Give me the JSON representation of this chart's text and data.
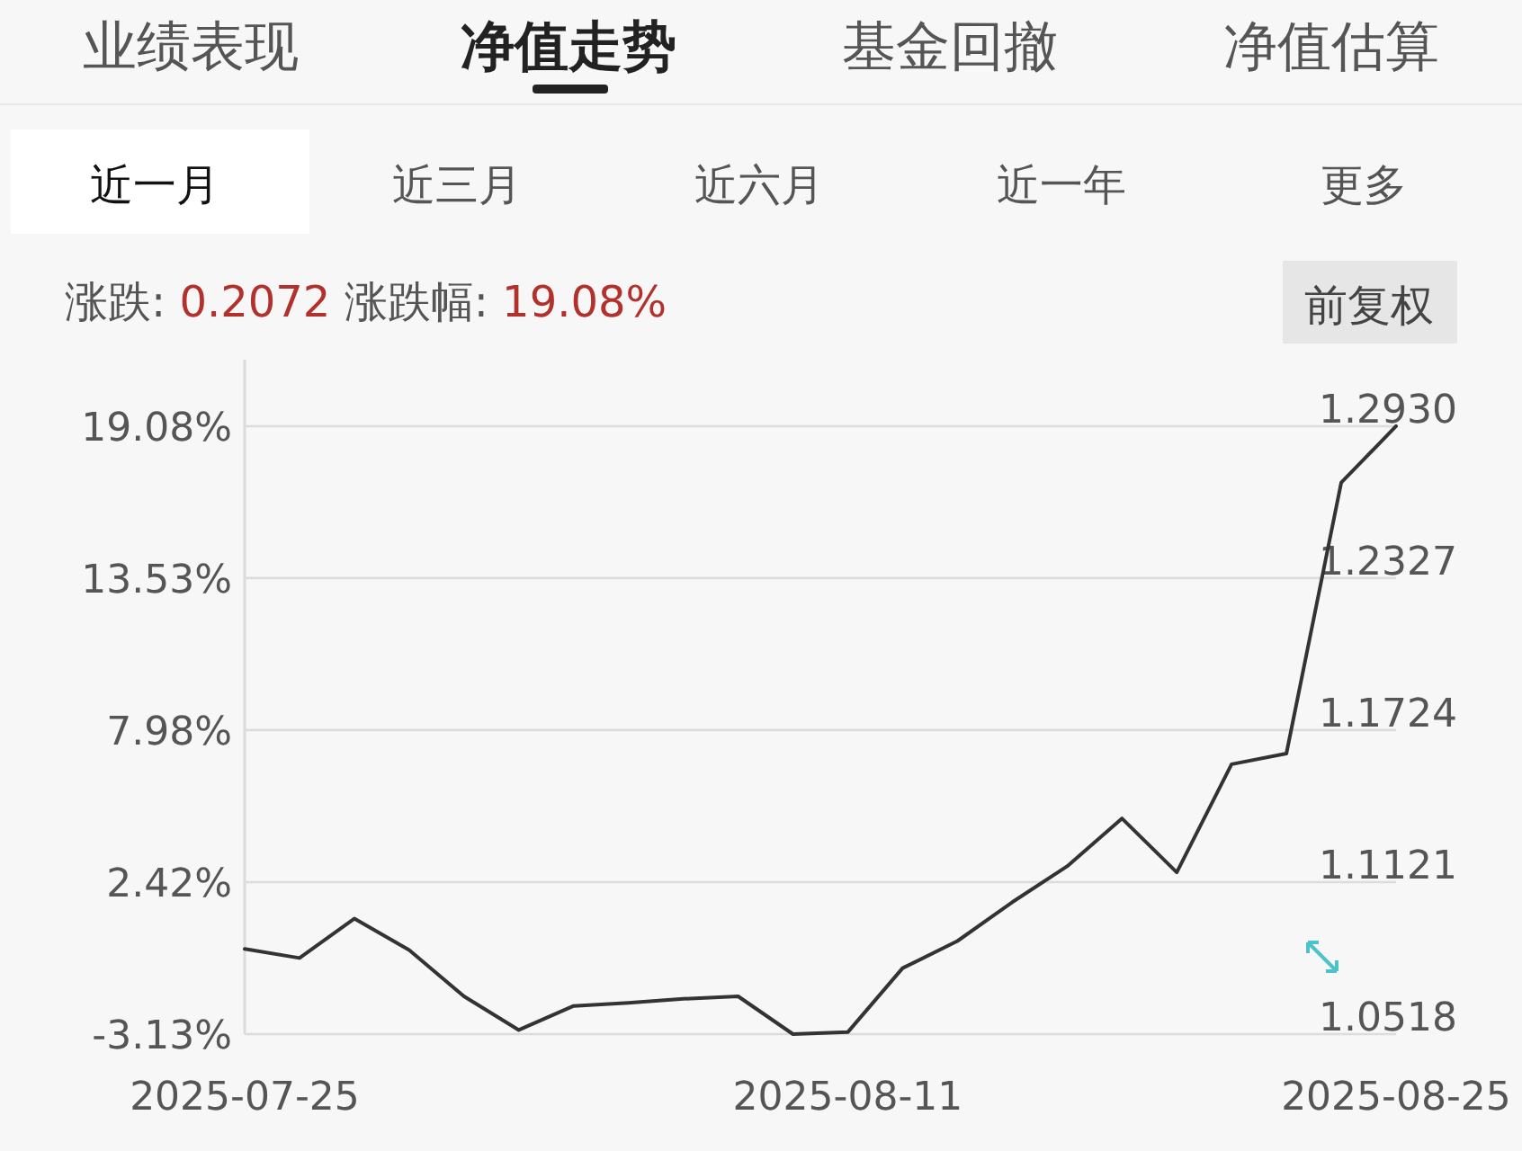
{
  "chart_data": {
    "type": "line",
    "annotations": [
      "业绩表现",
      "净值走势",
      "基金回撤",
      "净值估算",
      "近一月",
      "近三月",
      "近六月",
      "近一年",
      "更多",
      "涨跌:",
      "0.2072",
      "涨跌幅:",
      "19.08%",
      "前复权"
    ],
    "categories": [
      "2025-07-25",
      null,
      null,
      null,
      null,
      null,
      null,
      null,
      null,
      null,
      null,
      "2025-08-11",
      null,
      null,
      null,
      null,
      null,
      null,
      null,
      null,
      null,
      "2025-08-25"
    ],
    "series": [
      {
        "color": "#333333",
        "values": [
          -0.02,
          -0.35,
          1.09,
          -0.06,
          -1.75,
          -2.98,
          -2.1,
          -1.99,
          -1.84,
          -1.75,
          -3.13,
          -3.06,
          -0.72,
          0.27,
          1.69,
          3.0,
          4.75,
          2.78,
          6.73,
          7.12,
          17.02,
          19.08
        ]
      }
    ],
    "ylim": [
      -3.13,
      21.51
    ],
    "yticks": [
      {
        "value": -3.13,
        "label": "-3.13%"
      },
      {
        "value": 2.42,
        "label": "2.42%"
      },
      {
        "value": 7.98,
        "label": "7.98%"
      },
      {
        "value": 13.53,
        "label": "13.53%"
      },
      {
        "value": 19.08,
        "label": "19.08%"
      }
    ],
    "y2lim": [
      1.0518,
      1.293
    ],
    "y2ticks": [
      {
        "value": 1.0518,
        "label": "1.0518"
      },
      {
        "value": 1.1121,
        "label": "1.1121"
      },
      {
        "value": 1.1724,
        "label": "1.1724"
      },
      {
        "value": 1.2327,
        "label": "1.2327"
      },
      {
        "value": 1.293,
        "label": "1.2930"
      }
    ],
    "grid": "y",
    "marker": "none",
    "line_style": "solid"
  }
}
